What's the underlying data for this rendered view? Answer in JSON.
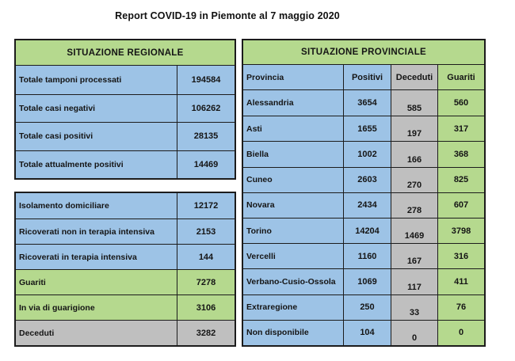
{
  "title": "Report COVID-19 in Piemonte al 7 maggio 2020",
  "colors": {
    "blue": "#9dc3e6",
    "green": "#b5d98e",
    "gray": "#bfbfbf",
    "border": "#1c1c1c"
  },
  "chart_data": [
    {
      "type": "table",
      "title": "SITUAZIONE REGIONALE",
      "rows": [
        {
          "label": "Totale tamponi processati",
          "value": 194584,
          "bg": "blue"
        },
        {
          "label": "Totale casi negativi",
          "value": 106262,
          "bg": "blue"
        },
        {
          "label": "Totale casi positivi",
          "value": 28135,
          "bg": "blue"
        },
        {
          "label": "Totale attualmente positivi",
          "value": 14469,
          "bg": "blue"
        }
      ]
    },
    {
      "type": "table",
      "title": "",
      "rows": [
        {
          "label": "Isolamento domiciliare",
          "value": 12172,
          "bg": "blue"
        },
        {
          "label": "Ricoverati non in terapia intensiva",
          "value": 2153,
          "bg": "blue"
        },
        {
          "label": "Ricoverati in terapia intensiva",
          "value": 144,
          "bg": "blue"
        },
        {
          "label": "Guariti",
          "value": 7278,
          "bg": "green"
        },
        {
          "label": "In via di guarigione",
          "value": 3106,
          "bg": "green"
        },
        {
          "label": "Deceduti",
          "value": 3282,
          "bg": "gray"
        }
      ]
    },
    {
      "type": "table",
      "title": "SITUAZIONE PROVINCIALE",
      "columns": [
        "Provincia",
        "Positivi",
        "Deceduti",
        "Guariti"
      ],
      "rows": [
        {
          "provincia": "Alessandria",
          "positivi": 3654,
          "deceduti": 585,
          "guariti": 560
        },
        {
          "provincia": "Asti",
          "positivi": 1655,
          "deceduti": 197,
          "guariti": 317
        },
        {
          "provincia": "Biella",
          "positivi": 1002,
          "deceduti": 166,
          "guariti": 368
        },
        {
          "provincia": "Cuneo",
          "positivi": 2603,
          "deceduti": 270,
          "guariti": 825
        },
        {
          "provincia": "Novara",
          "positivi": 2434,
          "deceduti": 278,
          "guariti": 607
        },
        {
          "provincia": "Torino",
          "positivi": 14204,
          "deceduti": 1469,
          "guariti": 3798
        },
        {
          "provincia": "Vercelli",
          "positivi": 1160,
          "deceduti": 167,
          "guariti": 316
        },
        {
          "provincia": "Verbano-Cusio-Ossola",
          "positivi": 1069,
          "deceduti": 117,
          "guariti": 411
        },
        {
          "provincia": "Extraregione",
          "positivi": 250,
          "deceduti": 33,
          "guariti": 76
        },
        {
          "provincia": "Non disponibile",
          "positivi": 104,
          "deceduti": 0,
          "guariti": 0
        }
      ]
    }
  ]
}
